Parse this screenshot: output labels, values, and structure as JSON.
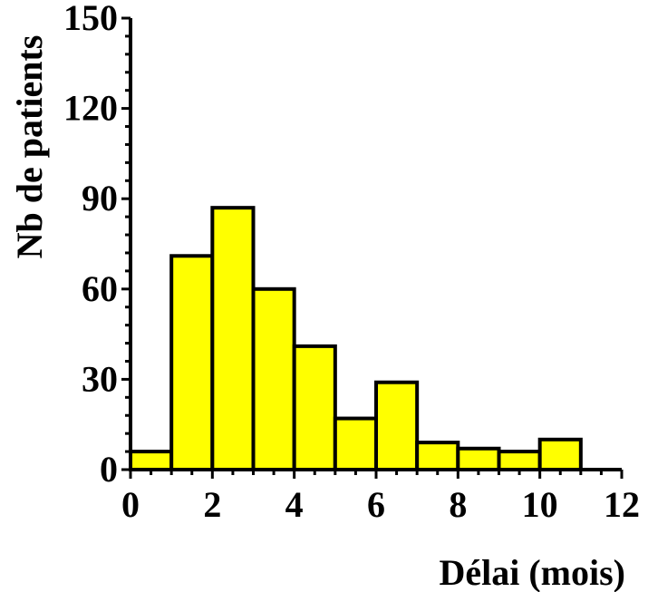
{
  "colors": {
    "bar_fill": "#ffff00",
    "bar_stroke": "#000000",
    "axis": "#000000",
    "background": "#ffffff"
  },
  "chart_data": {
    "type": "bar",
    "title": "",
    "xlabel": "Délai (mois)",
    "ylabel": "Nb de patients",
    "xlim": [
      0,
      12
    ],
    "ylim": [
      0,
      150
    ],
    "x_ticks": [
      "0",
      "2",
      "4",
      "6",
      "8",
      "10",
      "12"
    ],
    "y_ticks": [
      "0",
      "30",
      "60",
      "90",
      "120",
      "150"
    ],
    "bins": [
      {
        "x0": 0,
        "x1": 1,
        "value": 6
      },
      {
        "x0": 1,
        "x1": 2,
        "value": 71
      },
      {
        "x0": 2,
        "x1": 3,
        "value": 87
      },
      {
        "x0": 3,
        "x1": 4,
        "value": 60
      },
      {
        "x0": 4,
        "x1": 5,
        "value": 41
      },
      {
        "x0": 5,
        "x1": 6,
        "value": 17
      },
      {
        "x0": 6,
        "x1": 7,
        "value": 29
      },
      {
        "x0": 7,
        "x1": 8,
        "value": 9
      },
      {
        "x0": 8,
        "x1": 9,
        "value": 7
      },
      {
        "x0": 9,
        "x1": 10,
        "value": 6
      },
      {
        "x0": 10,
        "x1": 11,
        "value": 10
      },
      {
        "x0": 11,
        "x1": 12,
        "value": 0
      }
    ],
    "grid": false,
    "legend": "none"
  }
}
